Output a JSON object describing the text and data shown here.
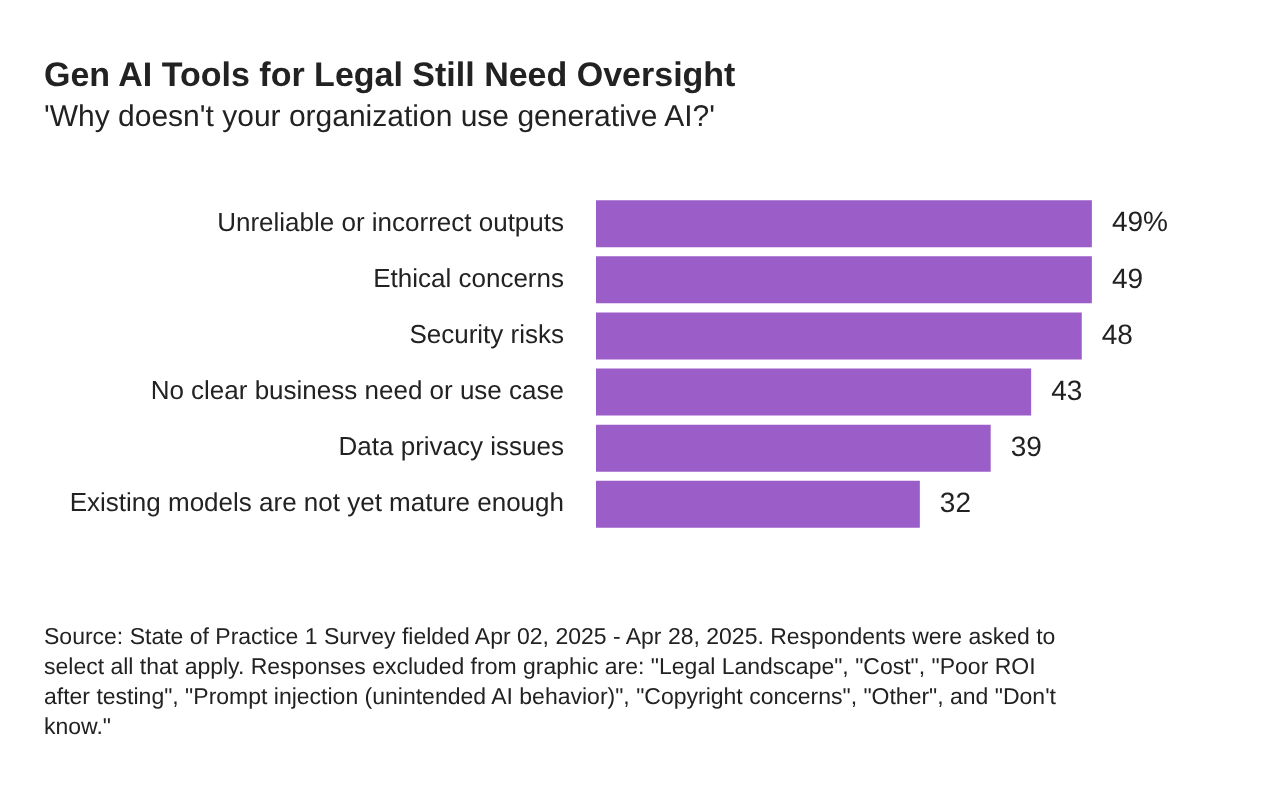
{
  "chart_data": {
    "type": "bar",
    "orientation": "horizontal",
    "title": "Gen AI Tools for Legal Still Need Oversight",
    "subtitle": "'Why doesn't your organization use generative AI?'",
    "categories": [
      "Unreliable or incorrect outputs",
      "Ethical concerns",
      "Security risks",
      "No clear business need or use case",
      "Data privacy issues",
      "Existing models are not yet mature enough"
    ],
    "values": [
      49,
      49,
      48,
      43,
      39,
      32
    ],
    "value_labels": [
      "49%",
      "49",
      "48",
      "43",
      "39",
      "32"
    ],
    "color": "#9b5ec8",
    "tick_labels": "y",
    "legend": false,
    "annotations": [
      "Source: State of Practice 1 Survey fielded Apr 02, 2025 - Apr 28, 2025. Respondents were asked to select all that apply. Responses excluded from graphic are: \"Legal Landscape\", \"Cost\", \"Poor ROI after testing\", \"Prompt injection (unintended AI behavior)\", \"Copyright concerns\", \"Other\", and \"Don't know.\""
    ]
  }
}
